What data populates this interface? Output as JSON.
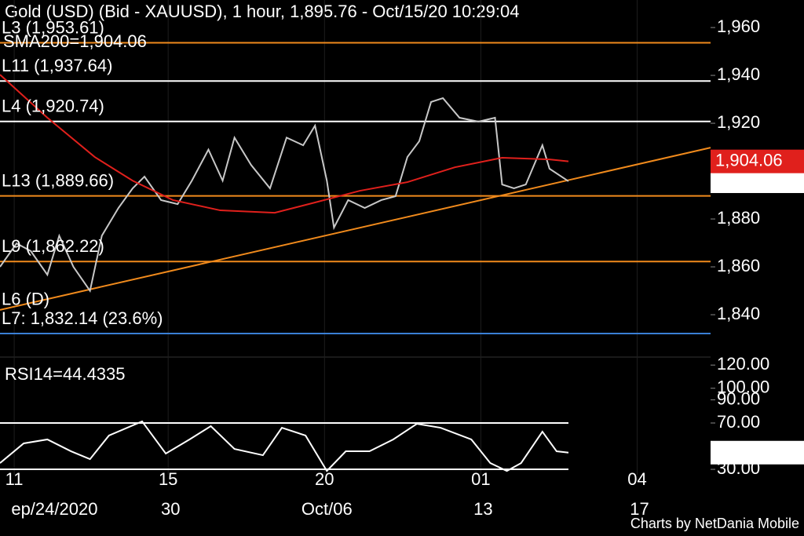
{
  "title": "Gold (USD) (Bid - XAUUSD),  1 hour, 1,895.76 - Oct/15/20 10:29:04",
  "credit": "Charts by NetDania Mobile",
  "chart_data": [
    {
      "type": "line",
      "xlim": [
        0,
        300
      ],
      "ylim": [
        1822.3,
        1971.5
      ],
      "yticks": [
        {
          "value": 1960,
          "label": "1,960"
        },
        {
          "value": 1940,
          "label": "1,940"
        },
        {
          "value": 1920,
          "label": "1,920"
        },
        {
          "value": 1900,
          "label": "1,900"
        },
        {
          "value": 1880,
          "label": "1,880"
        },
        {
          "value": 1860,
          "label": "1,860"
        },
        {
          "value": 1840,
          "label": "1,840"
        }
      ],
      "series": [
        {
          "color": "#c8c8c8",
          "x": [
            0,
            7,
            13,
            20,
            25,
            31,
            38,
            43,
            50,
            56,
            61,
            68,
            75,
            81,
            88,
            94,
            99,
            106,
            114,
            121,
            128,
            133,
            138,
            141,
            147,
            154,
            161,
            167,
            172,
            177,
            182,
            187,
            194,
            202,
            209,
            212,
            217,
            222,
            229,
            232,
            240
          ],
          "values": [
            1860,
            1869.8,
            1866.6,
            1856.7,
            1873,
            1860,
            1850,
            1873,
            1884.6,
            1892.8,
            1897.7,
            1887.9,
            1886.2,
            1896,
            1909,
            1896,
            1914,
            1902.6,
            1892.8,
            1914,
            1910.8,
            1919,
            1896,
            1876.4,
            1887.9,
            1884.6,
            1887.9,
            1889.5,
            1905.9,
            1912.5,
            1928.9,
            1930.5,
            1922.3,
            1920.7,
            1922.3,
            1894.4,
            1892.8,
            1894.4,
            1910.8,
            1901,
            1895.76
          ],
          "last_label": "1,895.76"
        },
        {
          "name": "SMA200=",
          "color": "#e0201c",
          "x": [
            0,
            20,
            40,
            56,
            73,
            93,
            116,
            133,
            152,
            172,
            192,
            212,
            232,
            240
          ],
          "values": [
            1940.3,
            1922.3,
            1905.9,
            1896,
            1887.9,
            1883.6,
            1882.6,
            1886.9,
            1891.8,
            1895.4,
            1901.6,
            1905.6,
            1904.9,
            1904.06
          ],
          "last_label": "1,904.06"
        }
      ],
      "trendline": {
        "color": "#f08a1c",
        "x": [
          0,
          300
        ],
        "values": [
          1842,
          1909.8
        ]
      },
      "levels": [
        {
          "label": "L3 (1,953.61)",
          "value": 1953.61,
          "color": "#f08a1c"
        },
        {
          "label": "L11 (1,937.64)",
          "value": 1937.64,
          "color": "#ffffff"
        },
        {
          "label": "L4 (1,920.74)",
          "value": 1920.74,
          "color": "#ffffff"
        },
        {
          "label": "L13 (1,889.66)",
          "value": 1889.66,
          "color": "#f08a1c"
        },
        {
          "label": "L9 (1,862.22)",
          "value": 1862.22,
          "color": "#f08a1c"
        },
        {
          "label": "L7: 1,832.14 (23.6%)",
          "value": 1832.14,
          "color": "#3a7fd5"
        }
      ],
      "extra_label": "L6 (D)"
    },
    {
      "type": "line",
      "xlim": [
        0,
        300
      ],
      "ylim": [
        25.3,
        126.9
      ],
      "yticks": [
        {
          "value": 120,
          "label": "120.00"
        },
        {
          "value": 100,
          "label": "100.00"
        },
        {
          "value": 90,
          "label": "90.00"
        },
        {
          "value": 70,
          "label": "70.00"
        },
        {
          "value": 30,
          "label": "30.00"
        }
      ],
      "levels": [
        70,
        30
      ],
      "series": [
        {
          "name": "RSI14=44.4335",
          "color": "#ffffff",
          "x": [
            0,
            10,
            20,
            30,
            38,
            46,
            60,
            70,
            80,
            89,
            99,
            111,
            119,
            129,
            138,
            146,
            156,
            166,
            176,
            186,
            199,
            207,
            214,
            220,
            229,
            235,
            240
          ],
          "values": [
            35.4,
            52.4,
            55.8,
            45.6,
            38.8,
            59.2,
            71.4,
            43.6,
            55.8,
            67.3,
            47.6,
            42.2,
            65.9,
            59.2,
            28.6,
            45.6,
            45.6,
            55.8,
            69.3,
            65.9,
            55.8,
            35.4,
            28.6,
            35.4,
            62.5,
            45.6,
            44.4335
          ],
          "last_label": "44.4335"
        }
      ],
      "xticks": [
        {
          "value": 6,
          "label": "11"
        },
        {
          "value": 71,
          "label": "15"
        },
        {
          "value": 137,
          "label": "20"
        },
        {
          "value": 203,
          "label": "01"
        },
        {
          "value": 269,
          "label": "04"
        }
      ],
      "xticks2": [
        {
          "value": 23,
          "label": "ep/24/2020"
        },
        {
          "value": 72,
          "label": "30"
        },
        {
          "value": 138,
          "label": "Oct/06"
        },
        {
          "value": 204,
          "label": "13"
        },
        {
          "value": 270,
          "label": "17"
        }
      ]
    }
  ]
}
